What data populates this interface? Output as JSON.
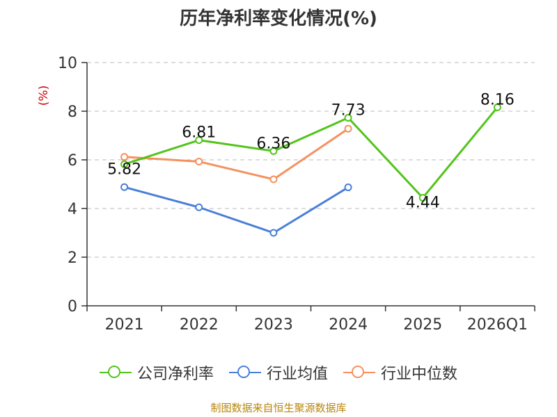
{
  "chart_data": {
    "type": "line",
    "title": "历年净利率变化情况(%)",
    "ylabel": "(%)",
    "xlabel": "",
    "categories": [
      "2021",
      "2022",
      "2023",
      "2024",
      "2025",
      "2026Q1"
    ],
    "ylim": [
      0,
      10
    ],
    "yticks": [
      0,
      2,
      4,
      6,
      8,
      10
    ],
    "grid": true,
    "legend_position": "bottom",
    "series": [
      {
        "name": "公司净利率",
        "color": "#52c41a",
        "values": [
          5.82,
          6.81,
          6.36,
          7.73,
          4.44,
          8.16
        ],
        "labels": [
          "5.82",
          "6.81",
          "6.36",
          "7.73",
          "4.44",
          "8.16"
        ]
      },
      {
        "name": "行业均值",
        "color": "#4a7fd9",
        "values": [
          4.88,
          4.05,
          3.0,
          4.87,
          null,
          null
        ]
      },
      {
        "name": "行业中位数",
        "color": "#f4915f",
        "values": [
          6.12,
          5.93,
          5.2,
          7.28,
          null,
          null
        ]
      }
    ]
  },
  "source_note": "制图数据来自恒生聚源数据库",
  "colors": {
    "title": "#333333",
    "axis": "#333333",
    "ylabel": "#cc0000",
    "grid": "#bbbbbb",
    "source": "#b8860b"
  }
}
